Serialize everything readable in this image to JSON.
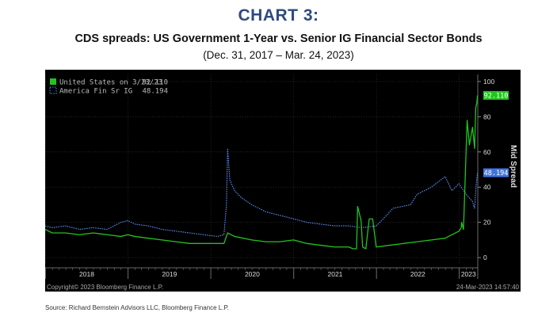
{
  "header": {
    "title": "CHART 3:",
    "subtitle": "CDS spreads: US Government 1-Year vs. Senior IG Financial Sector Bonds",
    "date_range": "(Dec. 31, 2017 – Mar. 24, 2023)"
  },
  "footer": {
    "source": "Source:  Richard Bernstein Advisors LLC,  Bloomberg Finance L.P."
  },
  "chart_meta": {
    "copyright": "Copyright© 2023 Bloomberg Finance L.P.",
    "timestamp": "24-Mar-2023 14:57:40"
  },
  "colors": {
    "background": "#000000",
    "us_series": "#22c41e",
    "fin_series": "#5b8ff0",
    "axis_text": "#dddddd",
    "grid": "#3a3a3a"
  },
  "chart_data": {
    "type": "line",
    "title": "",
    "xlabel": "",
    "ylabel": "Mid Spread",
    "x_tick_labels": [
      "2018",
      "2019",
      "2020",
      "2021",
      "2022",
      "2023"
    ],
    "y_ticks": [
      0,
      20,
      40,
      60,
      80,
      100
    ],
    "ylim": [
      -4,
      104
    ],
    "grid": true,
    "legend_position": "top-left",
    "legend": [
      {
        "label": "United States on 3/23/23",
        "value": "92.110"
      },
      {
        "label": "America Fin Sr IG",
        "value": "48.194"
      }
    ],
    "last_value_tags": [
      "92.110",
      "48.194"
    ],
    "series": [
      {
        "name": "United States on 3/23/23",
        "x": [
          "2017-12-31",
          "2018-01-31",
          "2018-03-31",
          "2018-05-31",
          "2018-07-31",
          "2018-09-30",
          "2018-11-30",
          "2018-12-31",
          "2019-01-31",
          "2019-03-31",
          "2019-05-31",
          "2019-07-31",
          "2019-09-30",
          "2019-11-30",
          "2020-01-31",
          "2020-02-28",
          "2020-03-15",
          "2020-04-15",
          "2020-06-30",
          "2020-08-31",
          "2020-10-31",
          "2020-12-31",
          "2021-02-28",
          "2021-04-30",
          "2021-06-30",
          "2021-08-31",
          "2021-09-20",
          "2021-10-05",
          "2021-10-10",
          "2021-10-25",
          "2021-11-01",
          "2021-11-15",
          "2021-11-30",
          "2021-12-15",
          "2021-12-31",
          "2022-02-28",
          "2022-04-30",
          "2022-06-30",
          "2022-08-31",
          "2022-10-31",
          "2022-11-15",
          "2022-12-31",
          "2023-01-10",
          "2023-01-12",
          "2023-01-20",
          "2023-02-05",
          "2023-02-15",
          "2023-03-01",
          "2023-03-10",
          "2023-03-15",
          "2023-03-20",
          "2023-03-23"
        ],
        "values": [
          16,
          14,
          14,
          13,
          14,
          13,
          12,
          13,
          12,
          11,
          10,
          9,
          8,
          8,
          8,
          8,
          14,
          12,
          10,
          9,
          9,
          10,
          8,
          7,
          6,
          6,
          5,
          5,
          29,
          21,
          6,
          5,
          22,
          22,
          6,
          7,
          8,
          9,
          10,
          11,
          12,
          15,
          17,
          20,
          16,
          78,
          64,
          74,
          62,
          85,
          88,
          92.11
        ]
      },
      {
        "name": "America Fin Sr IG",
        "x": [
          "2017-12-31",
          "2018-01-31",
          "2018-03-31",
          "2018-05-31",
          "2018-07-31",
          "2018-09-30",
          "2018-11-30",
          "2018-12-31",
          "2019-01-31",
          "2019-03-31",
          "2019-05-31",
          "2019-07-31",
          "2019-09-30",
          "2019-11-30",
          "2020-01-31",
          "2020-02-28",
          "2020-03-10",
          "2020-03-15",
          "2020-03-25",
          "2020-04-15",
          "2020-05-15",
          "2020-06-30",
          "2020-08-31",
          "2020-10-31",
          "2020-12-31",
          "2021-02-28",
          "2021-04-30",
          "2021-06-30",
          "2021-08-31",
          "2021-10-31",
          "2021-12-31",
          "2022-01-31",
          "2022-03-15",
          "2022-05-31",
          "2022-06-30",
          "2022-08-31",
          "2022-10-31",
          "2022-11-30",
          "2022-12-31",
          "2023-01-31",
          "2023-02-28",
          "2023-03-10",
          "2023-03-16",
          "2023-03-20",
          "2023-03-23"
        ],
        "values": [
          18,
          17,
          18,
          16,
          17,
          16,
          20,
          21,
          19,
          18,
          16,
          15,
          14,
          13,
          12,
          13,
          30,
          62,
          44,
          38,
          34,
          30,
          26,
          24,
          22,
          20,
          19,
          18,
          18,
          17,
          18,
          22,
          28,
          30,
          36,
          40,
          46,
          38,
          42,
          36,
          32,
          28,
          40,
          45,
          48.194
        ]
      }
    ]
  }
}
